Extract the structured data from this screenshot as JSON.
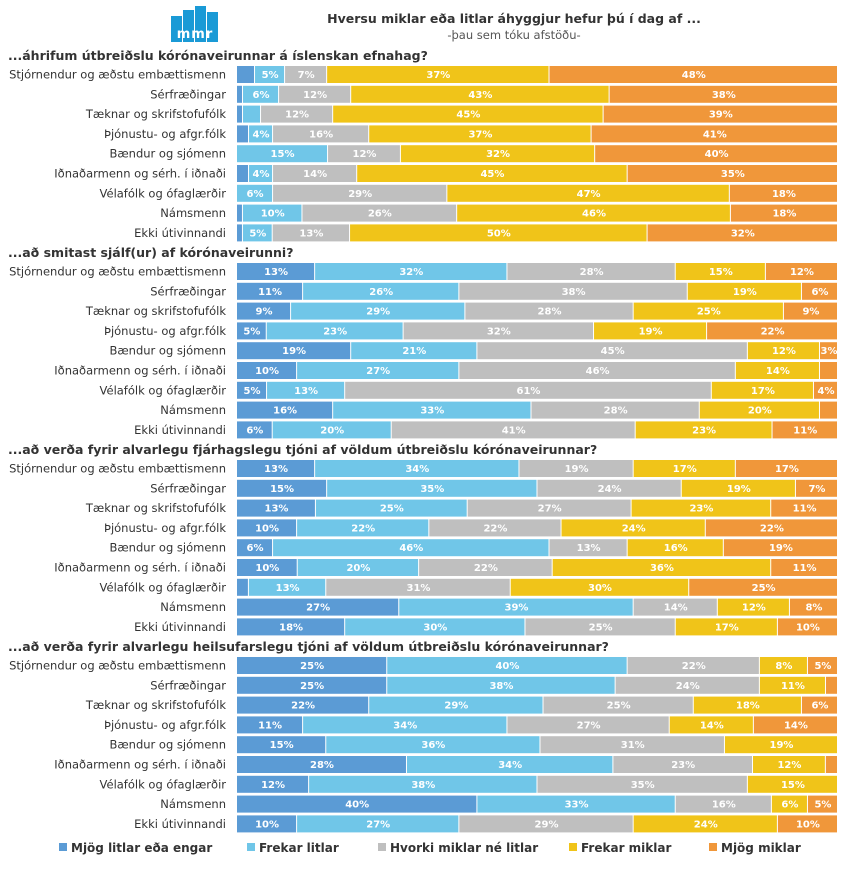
{
  "logo": {
    "text": "mmr",
    "color": "#1a9ad6"
  },
  "header": {
    "title": "Hversu miklar eða litlar áhyggjur hefur þú í dag af ...",
    "subtitle": "-þau sem tóku afstöðu-"
  },
  "legend": [
    {
      "label": "Mjög litlar eða engar",
      "color": "#5b9bd5"
    },
    {
      "label": "Frekar litlar",
      "color": "#70c6e8"
    },
    {
      "label": "Hvorki miklar né litlar",
      "color": "#bfbfbf"
    },
    {
      "label": "Frekar miklar",
      "color": "#f0c419"
    },
    {
      "label": "Mjög miklar",
      "color": "#f0973a"
    }
  ],
  "chart_data": {
    "type": "bar",
    "orientation": "horizontal",
    "stacked": "100%",
    "title": "Hversu miklar eða litlar áhyggjur hefur þú í dag af ...",
    "subtitle": "-þau sem tóku afstöðu-",
    "series_names": [
      "Mjög litlar eða engar",
      "Frekar litlar",
      "Hvorki miklar né litlar",
      "Frekar miklar",
      "Mjög miklar"
    ],
    "categories": [
      "Stjórnendur og æðstu embættismenn",
      "Sérfræðingar",
      "Tæknar og skrifstofufólk",
      "Þjónustu- og afgr.fólk",
      "Bændur og sjómenn",
      "Iðnaðarmenn og sérh. í iðnaði",
      "Vélafólk og ófaglærðir",
      "Námsmenn",
      "Ekki útivinnandi"
    ],
    "panels": [
      {
        "title": "...áhrifum útbreiðslu kórónaveirunnar á íslenskan efnahag?",
        "rows": [
          {
            "values": [
              3,
              5,
              7,
              37,
              48
            ],
            "labels": [
              "",
              "5%",
              "7%",
              "37%",
              "48%"
            ]
          },
          {
            "values": [
              1,
              6,
              12,
              43,
              38
            ],
            "labels": [
              "",
              "6%",
              "12%",
              "43%",
              "38%"
            ]
          },
          {
            "values": [
              1,
              3,
              12,
              45,
              39
            ],
            "labels": [
              "",
              "",
              "12%",
              "45%",
              "39%"
            ]
          },
          {
            "values": [
              2,
              4,
              16,
              37,
              41
            ],
            "labels": [
              "",
              "4%",
              "16%",
              "37%",
              "41%"
            ]
          },
          {
            "values": [
              0,
              15,
              12,
              32,
              40
            ],
            "labels": [
              "",
              "15%",
              "12%",
              "32%",
              "40%"
            ]
          },
          {
            "values": [
              2,
              4,
              14,
              45,
              35
            ],
            "labels": [
              "",
              "4%",
              "14%",
              "45%",
              "35%"
            ]
          },
          {
            "values": [
              0,
              6,
              29,
              47,
              18
            ],
            "labels": [
              "",
              "6%",
              "29%",
              "47%",
              "18%"
            ]
          },
          {
            "values": [
              1,
              10,
              26,
              46,
              18
            ],
            "labels": [
              "",
              "10%",
              "26%",
              "46%",
              "18%"
            ]
          },
          {
            "values": [
              1,
              5,
              13,
              50,
              32
            ],
            "labels": [
              "",
              "5%",
              "13%",
              "50%",
              "32%"
            ]
          }
        ]
      },
      {
        "title": "...að smitast sjálf(ur) af kórónaveirunni?",
        "rows": [
          {
            "values": [
              13,
              32,
              28,
              15,
              12
            ],
            "labels": [
              "13%",
              "32%",
              "28%",
              "15%",
              "12%"
            ]
          },
          {
            "values": [
              11,
              26,
              38,
              19,
              6
            ],
            "labels": [
              "11%",
              "26%",
              "38%",
              "19%",
              "6%"
            ]
          },
          {
            "values": [
              9,
              29,
              28,
              25,
              9
            ],
            "labels": [
              "9%",
              "29%",
              "28%",
              "25%",
              "9%"
            ]
          },
          {
            "values": [
              5,
              23,
              32,
              19,
              22
            ],
            "labels": [
              "5%",
              "23%",
              "32%",
              "19%",
              "22%"
            ]
          },
          {
            "values": [
              19,
              21,
              45,
              12,
              3
            ],
            "labels": [
              "19%",
              "21%",
              "45%",
              "12%",
              "3%"
            ]
          },
          {
            "values": [
              10,
              27,
              46,
              14,
              3
            ],
            "labels": [
              "10%",
              "27%",
              "46%",
              "14%",
              ""
            ]
          },
          {
            "values": [
              5,
              13,
              61,
              17,
              4
            ],
            "labels": [
              "5%",
              "13%",
              "61%",
              "17%",
              "4%"
            ]
          },
          {
            "values": [
              16,
              33,
              28,
              20,
              3
            ],
            "labels": [
              "16%",
              "33%",
              "28%",
              "20%",
              ""
            ]
          },
          {
            "values": [
              6,
              20,
              41,
              23,
              11
            ],
            "labels": [
              "6%",
              "20%",
              "41%",
              "23%",
              "11%"
            ]
          }
        ]
      },
      {
        "title": "...að verða fyrir alvarlegu fjárhagslegu tjóni af völdum útbreiðslu kórónaveirunnar?",
        "rows": [
          {
            "values": [
              13,
              34,
              19,
              17,
              17
            ],
            "labels": [
              "13%",
              "34%",
              "19%",
              "17%",
              "17%"
            ]
          },
          {
            "values": [
              15,
              35,
              24,
              19,
              7
            ],
            "labels": [
              "15%",
              "35%",
              "24%",
              "19%",
              "7%"
            ]
          },
          {
            "values": [
              13,
              25,
              27,
              23,
              11
            ],
            "labels": [
              "13%",
              "25%",
              "27%",
              "23%",
              "11%"
            ]
          },
          {
            "values": [
              10,
              22,
              22,
              24,
              22
            ],
            "labels": [
              "10%",
              "22%",
              "22%",
              "24%",
              "22%"
            ]
          },
          {
            "values": [
              6,
              46,
              13,
              16,
              19
            ],
            "labels": [
              "6%",
              "46%",
              "13%",
              "16%",
              "19%"
            ]
          },
          {
            "values": [
              10,
              20,
              22,
              36,
              11
            ],
            "labels": [
              "10%",
              "20%",
              "22%",
              "36%",
              "11%"
            ]
          },
          {
            "values": [
              2,
              13,
              31,
              30,
              25
            ],
            "labels": [
              "",
              "13%",
              "31%",
              "30%",
              "25%"
            ]
          },
          {
            "values": [
              27,
              39,
              14,
              12,
              8
            ],
            "labels": [
              "27%",
              "39%",
              "14%",
              "12%",
              "8%"
            ]
          },
          {
            "values": [
              18,
              30,
              25,
              17,
              10
            ],
            "labels": [
              "18%",
              "30%",
              "25%",
              "17%",
              "10%"
            ]
          }
        ]
      },
      {
        "title": "...að verða fyrir alvarlegu heilsufarslegu tjóni af völdum útbreiðslu kórónaveirunnar?",
        "rows": [
          {
            "values": [
              25,
              40,
              22,
              8,
              5
            ],
            "labels": [
              "25%",
              "40%",
              "22%",
              "8%",
              "5%"
            ]
          },
          {
            "values": [
              25,
              38,
              24,
              11,
              2
            ],
            "labels": [
              "25%",
              "38%",
              "24%",
              "11%",
              ""
            ]
          },
          {
            "values": [
              22,
              29,
              25,
              18,
              6
            ],
            "labels": [
              "22%",
              "29%",
              "25%",
              "18%",
              "6%"
            ]
          },
          {
            "values": [
              11,
              34,
              27,
              14,
              14
            ],
            "labels": [
              "11%",
              "34%",
              "27%",
              "14%",
              "14%"
            ]
          },
          {
            "values": [
              15,
              36,
              31,
              19,
              0
            ],
            "labels": [
              "15%",
              "36%",
              "31%",
              "19%",
              ""
            ]
          },
          {
            "values": [
              28,
              34,
              23,
              12,
              2
            ],
            "labels": [
              "28%",
              "34%",
              "23%",
              "12%",
              ""
            ]
          },
          {
            "values": [
              12,
              38,
              35,
              15,
              0
            ],
            "labels": [
              "12%",
              "38%",
              "35%",
              "15%",
              ""
            ]
          },
          {
            "values": [
              40,
              33,
              16,
              6,
              5
            ],
            "labels": [
              "40%",
              "33%",
              "16%",
              "6%",
              "5%"
            ]
          },
          {
            "values": [
              10,
              27,
              29,
              24,
              10
            ],
            "labels": [
              "10%",
              "27%",
              "29%",
              "24%",
              "10%"
            ]
          }
        ]
      }
    ]
  }
}
